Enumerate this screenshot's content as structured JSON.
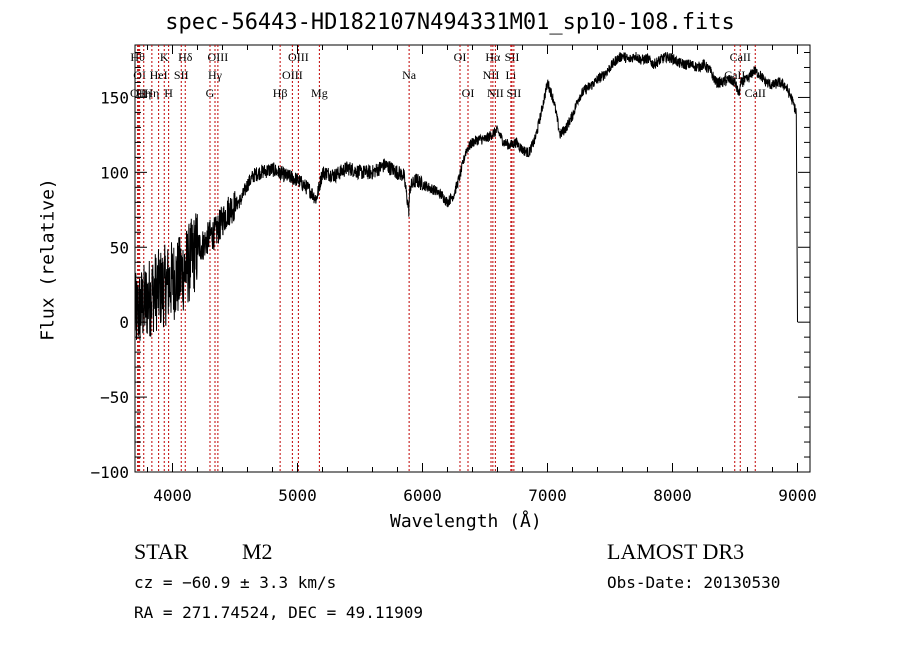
{
  "chart_data": {
    "type": "line",
    "title": "spec-56443-HD182107N494331M01_sp10-108.fits",
    "xlabel": "Wavelength (Å)",
    "ylabel": "Flux (relative)",
    "xlim": [
      3700,
      9100
    ],
    "ylim": [
      -100,
      185
    ],
    "xticks": [
      4000,
      5000,
      6000,
      7000,
      8000,
      9000
    ],
    "xtick_labels": [
      "4000",
      "5000",
      "6000",
      "7000",
      "8000",
      "9000"
    ],
    "yticks": [
      -100,
      -50,
      0,
      50,
      100,
      150
    ],
    "ytick_labels": [
      "−100",
      "−50",
      "0",
      "50",
      "100",
      "150"
    ],
    "grid": false,
    "series": [
      {
        "x": [
          3700,
          3750,
          3800,
          3850,
          3900,
          3950,
          4000,
          4050,
          4100,
          4150,
          4200,
          4250,
          4300,
          4350,
          4400,
          4450,
          4500,
          4550,
          4600,
          4650,
          4700,
          4800,
          4900,
          5000,
          5100,
          5150,
          5200,
          5300,
          5400,
          5500,
          5600,
          5700,
          5800,
          5850,
          5890,
          5900,
          5950,
          6000,
          6100,
          6150,
          6200,
          6250,
          6300,
          6350,
          6400,
          6450,
          6500,
          6550,
          6600,
          6650,
          6700,
          6750,
          6800,
          6850,
          6900,
          6950,
          7000,
          7050,
          7100,
          7150,
          7200,
          7250,
          7300,
          7350,
          7400,
          7450,
          7500,
          7550,
          7600,
          7650,
          7700,
          7750,
          7800,
          7850,
          7900,
          7950,
          8000,
          8050,
          8100,
          8150,
          8200,
          8250,
          8300,
          8350,
          8400,
          8450,
          8500,
          8530,
          8550,
          8600,
          8650,
          8700,
          8750,
          8800,
          8850,
          8900,
          8950,
          8990,
          9000
        ],
        "y": [
          5,
          10,
          15,
          20,
          22,
          25,
          28,
          30,
          35,
          42,
          50,
          52,
          58,
          60,
          68,
          75,
          78,
          82,
          92,
          98,
          100,
          102,
          98,
          95,
          88,
          82,
          100,
          98,
          103,
          100,
          100,
          105,
          100,
          98,
          75,
          90,
          95,
          92,
          88,
          85,
          80,
          85,
          98,
          115,
          120,
          122,
          122,
          125,
          128,
          120,
          118,
          120,
          115,
          113,
          122,
          140,
          160,
          148,
          125,
          130,
          138,
          150,
          155,
          158,
          162,
          165,
          170,
          175,
          178,
          175,
          178,
          175,
          176,
          172,
          175,
          177,
          176,
          173,
          172,
          172,
          170,
          172,
          168,
          160,
          160,
          162,
          160,
          152,
          160,
          162,
          168,
          165,
          160,
          158,
          160,
          158,
          150,
          140,
          0
        ]
      }
    ],
    "lines": [
      {
        "x": 3721,
        "label": "Hθ",
        "row": 1
      },
      {
        "x": 3727,
        "label": "OII",
        "row": 3
      },
      {
        "x": 3737,
        "label": "OI",
        "row": 2
      },
      {
        "x": 3770,
        "label": "Hη",
        "row": 3
      },
      {
        "x": 3835,
        "label": "Hη",
        "row": 3
      },
      {
        "x": 3889,
        "label": "HeI",
        "row": 2
      },
      {
        "x": 3934,
        "label": "K",
        "row": 1
      },
      {
        "x": 3969,
        "label": "H",
        "row": 3
      },
      {
        "x": 4070,
        "label": "SII",
        "row": 2
      },
      {
        "x": 4102,
        "label": "Hδ",
        "row": 1
      },
      {
        "x": 4300,
        "label": "G",
        "row": 3
      },
      {
        "x": 4340,
        "label": "Hγ",
        "row": 2
      },
      {
        "x": 4363,
        "label": "OIII",
        "row": 1
      },
      {
        "x": 4861,
        "label": "Hβ",
        "row": 3
      },
      {
        "x": 4959,
        "label": "OIII",
        "row": 2
      },
      {
        "x": 5007,
        "label": "OIII",
        "row": 1
      },
      {
        "x": 5175,
        "label": "Mg",
        "row": 3
      },
      {
        "x": 5893,
        "label": "Na",
        "row": 2
      },
      {
        "x": 6300,
        "label": "OI",
        "row": 1
      },
      {
        "x": 6364,
        "label": "OI",
        "row": 3
      },
      {
        "x": 6548,
        "label": "NII",
        "row": 2
      },
      {
        "x": 6563,
        "label": "Hα",
        "row": 1
      },
      {
        "x": 6583,
        "label": "NII",
        "row": 3
      },
      {
        "x": 6707,
        "label": "Li",
        "row": 2
      },
      {
        "x": 6716,
        "label": "SII",
        "row": 1
      },
      {
        "x": 6731,
        "label": "SII",
        "row": 3
      },
      {
        "x": 8498,
        "label": "CaII",
        "row": 2
      },
      {
        "x": 8542,
        "label": "CaII",
        "row": 1
      },
      {
        "x": 8662,
        "label": "CaII",
        "row": 3
      }
    ]
  },
  "info": {
    "object_class": "STAR",
    "subclass": "M2",
    "survey": "LAMOST DR3",
    "cz": "cz = −60.9 ± 3.3 km/s",
    "obs_date": "Obs-Date: 20130530",
    "coords": "RA = 271.74524, DEC =  49.11909"
  }
}
